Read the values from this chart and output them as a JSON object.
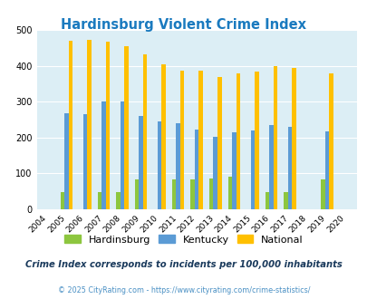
{
  "title": "Hardinsburg Violent Crime Index",
  "years": [
    2004,
    2005,
    2006,
    2007,
    2008,
    2009,
    2010,
    2011,
    2012,
    2013,
    2014,
    2015,
    2016,
    2017,
    2018,
    2019,
    2020
  ],
  "hardinsburg": [
    0,
    47,
    0,
    47,
    47,
    83,
    0,
    84,
    84,
    87,
    90,
    0,
    47,
    47,
    0,
    84,
    0
  ],
  "kentucky": [
    0,
    267,
    265,
    300,
    300,
    260,
    245,
    240,
    223,
    203,
    215,
    220,
    235,
    229,
    0,
    217,
    0
  ],
  "national": [
    0,
    469,
    472,
    467,
    455,
    432,
    405,
    387,
    387,
    368,
    378,
    383,
    398,
    394,
    0,
    379,
    0
  ],
  "bar_width": 0.22,
  "color_hardinsburg": "#8dc63f",
  "color_kentucky": "#5b9bd5",
  "color_national": "#ffc000",
  "bg_color": "#dceef5",
  "grid_color": "#ffffff",
  "ylim": [
    0,
    500
  ],
  "yticks": [
    0,
    100,
    200,
    300,
    400,
    500
  ],
  "subtitle": "Crime Index corresponds to incidents per 100,000 inhabitants",
  "footer": "© 2025 CityRating.com - https://www.cityrating.com/crime-statistics/",
  "title_color": "#1a7abf",
  "subtitle_color": "#1a3a5c",
  "footer_color": "#4a90c4"
}
